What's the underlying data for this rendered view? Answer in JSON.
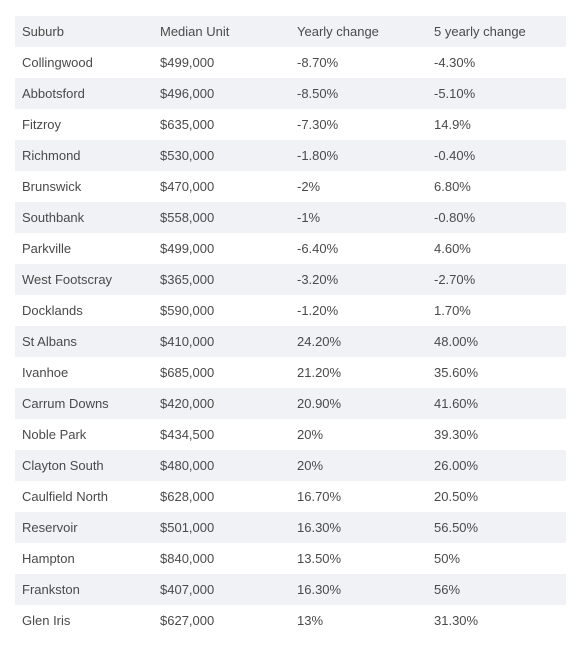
{
  "table": {
    "headers": [
      "Suburb",
      "Median Unit",
      "Yearly change",
      "5 yearly change"
    ],
    "rows": [
      [
        "Collingwood",
        "$499,000",
        "-8.70%",
        "-4.30%"
      ],
      [
        "Abbotsford",
        "$496,000",
        "-8.50%",
        "-5.10%"
      ],
      [
        "Fitzroy",
        "$635,000",
        "-7.30%",
        "14.9%"
      ],
      [
        "Richmond",
        "$530,000",
        "-1.80%",
        "-0.40%"
      ],
      [
        "Brunswick",
        "$470,000",
        "-2%",
        "6.80%"
      ],
      [
        "Southbank",
        "$558,000",
        "-1%",
        "-0.80%"
      ],
      [
        "Parkville",
        "$499,000",
        "-6.40%",
        "4.60%"
      ],
      [
        "West Footscray",
        "$365,000",
        "-3.20%",
        "-2.70%"
      ],
      [
        "Docklands",
        "$590,000",
        "-1.20%",
        "1.70%"
      ],
      [
        "St Albans",
        "$410,000",
        "24.20%",
        "48.00%"
      ],
      [
        "Ivanhoe",
        "$685,000",
        "21.20%",
        "35.60%"
      ],
      [
        "Carrum Downs",
        "$420,000",
        "20.90%",
        "41.60%"
      ],
      [
        "Noble Park",
        "$434,500",
        "20%",
        "39.30%"
      ],
      [
        "Clayton South",
        "$480,000",
        "20%",
        "26.00%"
      ],
      [
        "Caulfield North",
        "$628,000",
        "16.70%",
        "20.50%"
      ],
      [
        "Reservoir",
        "$501,000",
        "16.30%",
        "56.50%"
      ],
      [
        "Hampton",
        "$840,000",
        "13.50%",
        "50%"
      ],
      [
        "Frankston",
        "$407,000",
        "16.30%",
        "56%"
      ],
      [
        "Glen Iris",
        "$627,000",
        "13%",
        "31.30%"
      ]
    ]
  }
}
